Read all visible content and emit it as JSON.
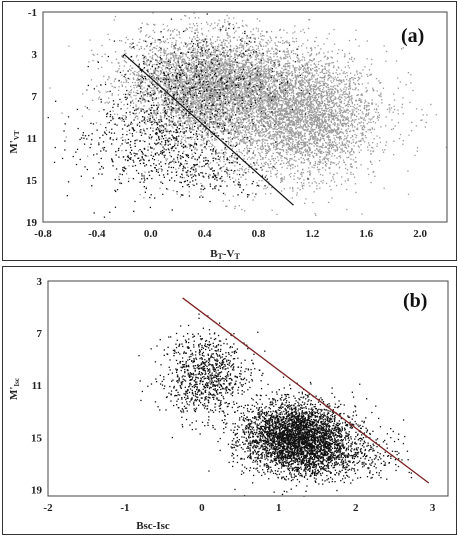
{
  "chart_data": [
    {
      "type": "scatter",
      "panel_label": "(a)",
      "xlabel": "B_T-V_T",
      "ylabel": "M'_{V_T}",
      "xlim": [
        -0.8,
        2.2
      ],
      "ylim": [
        19,
        -1
      ],
      "x_ticks": [
        "-0.8",
        "-0.4",
        "0.0",
        "0.4",
        "0.8",
        "1.2",
        "1.6",
        "2.0"
      ],
      "y_ticks": [
        "-1",
        "3",
        "7",
        "11",
        "15",
        "19"
      ],
      "grid": false,
      "series": [
        {
          "color": "#999999",
          "clusters": [
            {
              "x": 0.45,
              "y": 5.8,
              "sx": 0.32,
              "sy": 2.4,
              "n": 4500
            },
            {
              "x": 1.15,
              "y": 8.5,
              "sx": 0.25,
              "sy": 2.8,
              "n": 2600
            },
            {
              "x": 0.85,
              "y": 10.0,
              "sx": 0.45,
              "sy": 3.0,
              "n": 1600
            }
          ]
        },
        {
          "color": "#111111",
          "clusters": [
            {
              "x": 0.35,
              "y": 5.6,
              "sx": 0.32,
              "sy": 2.2,
              "n": 520
            },
            {
              "x": 0.05,
              "y": 11.5,
              "sx": 0.32,
              "sy": 2.3,
              "n": 650
            },
            {
              "x": 0.45,
              "y": 14.5,
              "sx": 0.2,
              "sy": 1.0,
              "n": 120
            }
          ]
        }
      ],
      "reference_line": {
        "x": [
          -0.2,
          1.06
        ],
        "y": [
          3.0,
          17.4
        ]
      }
    },
    {
      "type": "scatter",
      "panel_label": "(b)",
      "xlabel": "Bsc-Isc",
      "ylabel": "M'_{Isc}",
      "xlim": [
        -2,
        3.2
      ],
      "ylim": [
        19.5,
        3
      ],
      "x_ticks": [
        "-2",
        "-1",
        "0",
        "1",
        "2",
        "3"
      ],
      "y_ticks": [
        "3",
        "7",
        "11",
        "15",
        "19"
      ],
      "grid": false,
      "series": [
        {
          "color": "#111111",
          "clusters": [
            {
              "x": 0.05,
              "y": 10.2,
              "sx": 0.28,
              "sy": 1.6,
              "n": 900
            },
            {
              "x": 1.2,
              "y": 14.8,
              "sx": 0.33,
              "sy": 1.3,
              "n": 3200
            },
            {
              "x": 1.6,
              "y": 16.3,
              "sx": 0.45,
              "sy": 1.0,
              "n": 900
            }
          ]
        }
      ],
      "reference_line": {
        "x": [
          -0.25,
          2.95
        ],
        "y": [
          4.3,
          18.5
        ]
      }
    }
  ]
}
